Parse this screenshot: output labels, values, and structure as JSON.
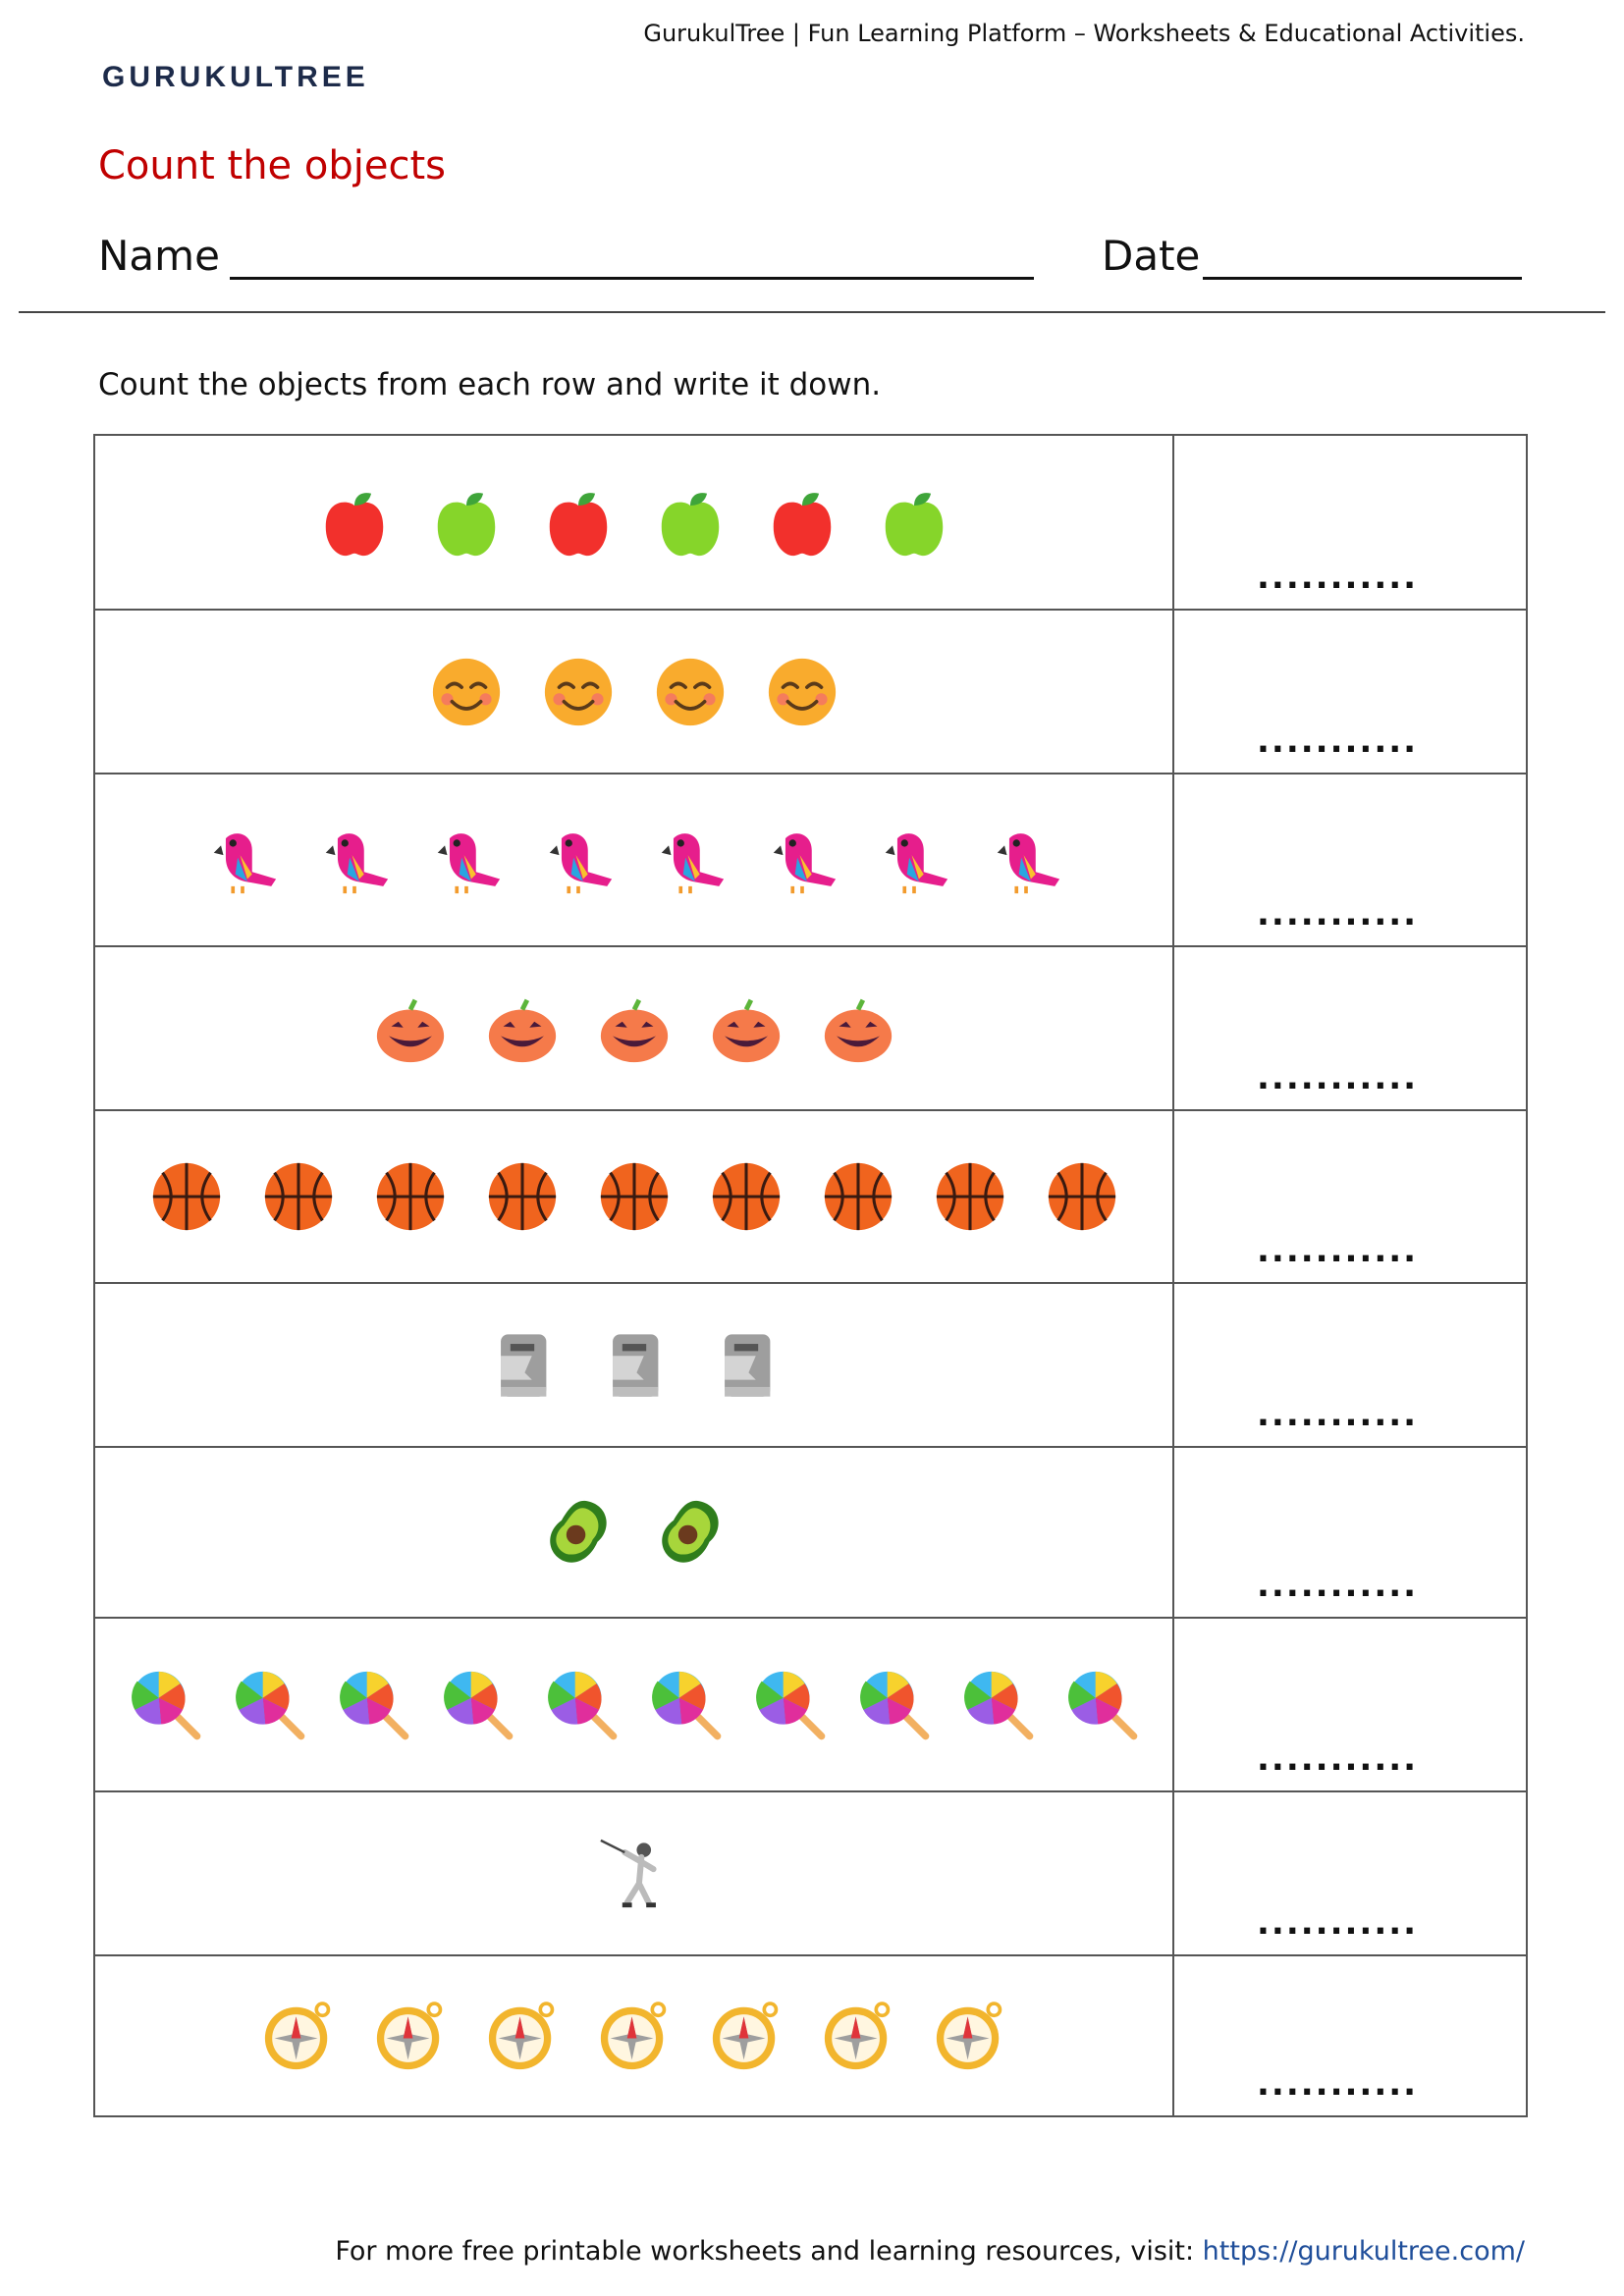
{
  "header": {
    "tagline": "GurukulTree | Fun Learning Platform – Worksheets & Educational Activities.",
    "logo": "GURUKULTREE"
  },
  "worksheet": {
    "title": "Count the objects",
    "name_label": "Name",
    "date_label": "Date",
    "instruction": "Count the objects from each row and write it down."
  },
  "table": {
    "rows": [
      {
        "answer": "..........."
      },
      {
        "answer": "..........."
      },
      {
        "answer": "..........."
      },
      {
        "answer": "..........."
      },
      {
        "answer": "..........."
      },
      {
        "answer": "..........."
      },
      {
        "answer": "..........."
      },
      {
        "answer": "..........."
      },
      {
        "answer": "..........."
      },
      {
        "answer": "..........."
      }
    ]
  },
  "footer": {
    "text": "For more free printable worksheets and learning resources, visit:",
    "link": "https://gurukultree.com/"
  }
}
